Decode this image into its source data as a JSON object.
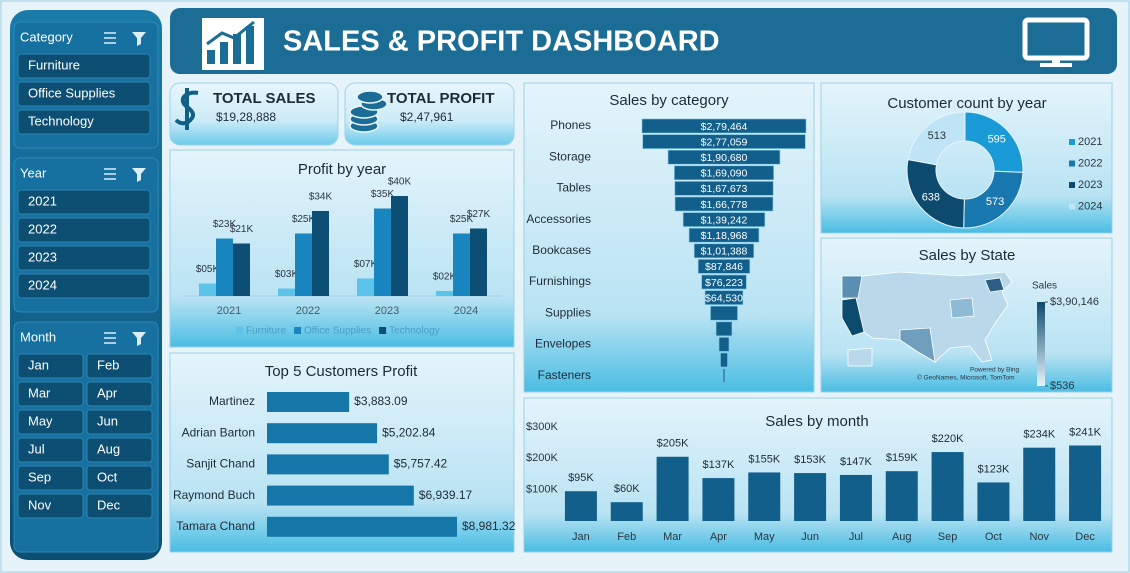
{
  "header": {
    "title": "SALES  & PROFIT DASHBOARD"
  },
  "slicers": [
    {
      "title": "Category",
      "items": [
        "Furniture",
        "Office Supplies",
        "Technology"
      ]
    },
    {
      "title": "Year",
      "items": [
        "2021",
        "2022",
        "2023",
        "2024"
      ]
    },
    {
      "title": "Month",
      "items": [
        "Jan",
        "Feb",
        "Mar",
        "Apr",
        "May",
        "Jun",
        "Jul",
        "Aug",
        "Sep",
        "Oct",
        "Nov",
        "Dec"
      ]
    }
  ],
  "kpis": [
    {
      "title": "TOTAL SALES",
      "value": "$19,28,888"
    },
    {
      "title": "TOTAL PROFIT",
      "value": "$2,47,961"
    }
  ],
  "chart_data": [
    {
      "type": "groupedbar",
      "title": "Profit by year",
      "categories": [
        "2021",
        "2022",
        "2023",
        "2024"
      ],
      "series": [
        {
          "name": "Furniture",
          "color": "#5cc3ea",
          "values": [
            5000,
            3000,
            7000,
            2000
          ],
          "value_labels": [
            "$05K",
            "$03K",
            "$07K",
            "$02K"
          ]
        },
        {
          "name": "Office Supplies",
          "color": "#1a86bf",
          "values": [
            23000,
            25000,
            35000,
            25000
          ],
          "value_labels": [
            "$23K",
            "$25K",
            "$35K",
            "$25K"
          ]
        },
        {
          "name": "Technology",
          "color": "#0c4e74",
          "values": [
            21000,
            34000,
            40000,
            27000
          ],
          "value_labels": [
            "$21K",
            "$34K",
            "$40K",
            "$27K"
          ]
        }
      ]
    },
    {
      "type": "hbar",
      "title": "Top 5 Customers Profit",
      "color": "#1577a8",
      "categories": [
        "Martinez",
        "Adrian Barton",
        "Sanjit Chand",
        "Raymond Buch",
        "Tamara Chand"
      ],
      "values": [
        3883.09,
        5202.84,
        5757.42,
        6939.17,
        8981.32
      ],
      "value_labels": [
        "$3,883.09",
        "$5,202.84",
        "$5,757.42",
        "$6,939.17",
        "$8,981.32"
      ]
    },
    {
      "type": "funnel",
      "title": "Sales by category",
      "color": "#135f8c",
      "categories": [
        "Phones",
        null,
        "Storage",
        null,
        "Tables",
        null,
        "Accessories",
        null,
        "Bookcases",
        null,
        "Furnishings",
        null,
        "Supplies",
        null,
        "Envelopes",
        null,
        "Fasteners"
      ],
      "values": [
        279464,
        277059,
        190680,
        169090,
        167673,
        166778,
        139242,
        118968,
        101388,
        87846,
        76223,
        64530,
        46000,
        27000,
        17000,
        12000,
        3000
      ],
      "value_labels": [
        "$2,79,464",
        "$2,77,059",
        "$1,90,680",
        "$1,69,090",
        "$1,67,673",
        "$1,66,778",
        "$1,39,242",
        "$1,18,968",
        "$1,01,388",
        "$87,846",
        "$76,223",
        "$64,530",
        null,
        null,
        null,
        null,
        null
      ]
    },
    {
      "type": "donut",
      "title": "Customer count by year",
      "categories": [
        "2021",
        "2022",
        "2023",
        "2024"
      ],
      "values": [
        595,
        573,
        638,
        513
      ],
      "colors": [
        "#1a9ad6",
        "#1a78b0",
        "#0c4a6e",
        "#bfe4f5"
      ]
    },
    {
      "type": "map",
      "title": "Sales by State",
      "colorscale": {
        "title": "Sales",
        "ticks": [
          {
            "value": 390146,
            "label": "$3,90,146"
          },
          {
            "value": 536,
            "label": "$536"
          }
        ],
        "colors": [
          "#0c4a6e",
          "#e6f4fb"
        ]
      },
      "credits": [
        "Powered by Bing",
        "© GeoNames, Microsoft, TomTom"
      ]
    },
    {
      "type": "bar",
      "title": "Sales by month",
      "color": "#135f8c",
      "categories": [
        "Jan",
        "Feb",
        "Mar",
        "Apr",
        "May",
        "Jun",
        "Jul",
        "Aug",
        "Sep",
        "Oct",
        "Nov",
        "Dec"
      ],
      "values": [
        95000,
        60000,
        205000,
        137000,
        155000,
        153000,
        147000,
        159000,
        220000,
        123000,
        234000,
        241000
      ],
      "value_labels": [
        "$95K",
        "$60K",
        "$205K",
        "$137K",
        "$155K",
        "$153K",
        "$147K",
        "$159K",
        "$220K",
        "$123K",
        "$234K",
        "$241K"
      ],
      "ylim": [
        0,
        300000
      ],
      "yticks": [
        {
          "value": 100000,
          "label": "$100K"
        },
        {
          "value": 200000,
          "label": "$200K"
        },
        {
          "value": 300000,
          "label": "$300K"
        }
      ]
    }
  ]
}
